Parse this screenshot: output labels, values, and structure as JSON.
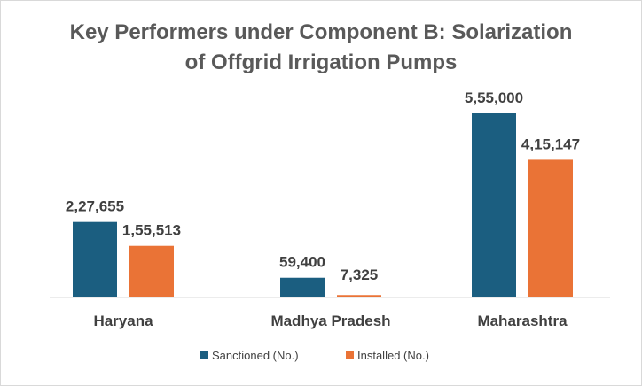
{
  "chart_data": {
    "type": "bar",
    "title": "Key Performers under Component B: Solarization of Offgrid Irrigation Pumps",
    "categories": [
      "Haryana",
      "Madhya Pradesh",
      "Maharashtra"
    ],
    "series": [
      {
        "name": "Sanctioned (No.)",
        "color": "#1b5e80",
        "values": [
          227655,
          59400,
          555000
        ],
        "labels": [
          "2,27,655",
          "59,400",
          "5,55,000"
        ]
      },
      {
        "name": "Installed (No.)",
        "color": "#ea7336",
        "values": [
          155513,
          7325,
          415147
        ],
        "labels": [
          "1,55,513",
          "7,325",
          "4,15,147"
        ]
      }
    ],
    "ylim": [
      0,
      555000
    ],
    "grid": false,
    "legend": "bottom",
    "axis_color": "#d9d9d9"
  }
}
